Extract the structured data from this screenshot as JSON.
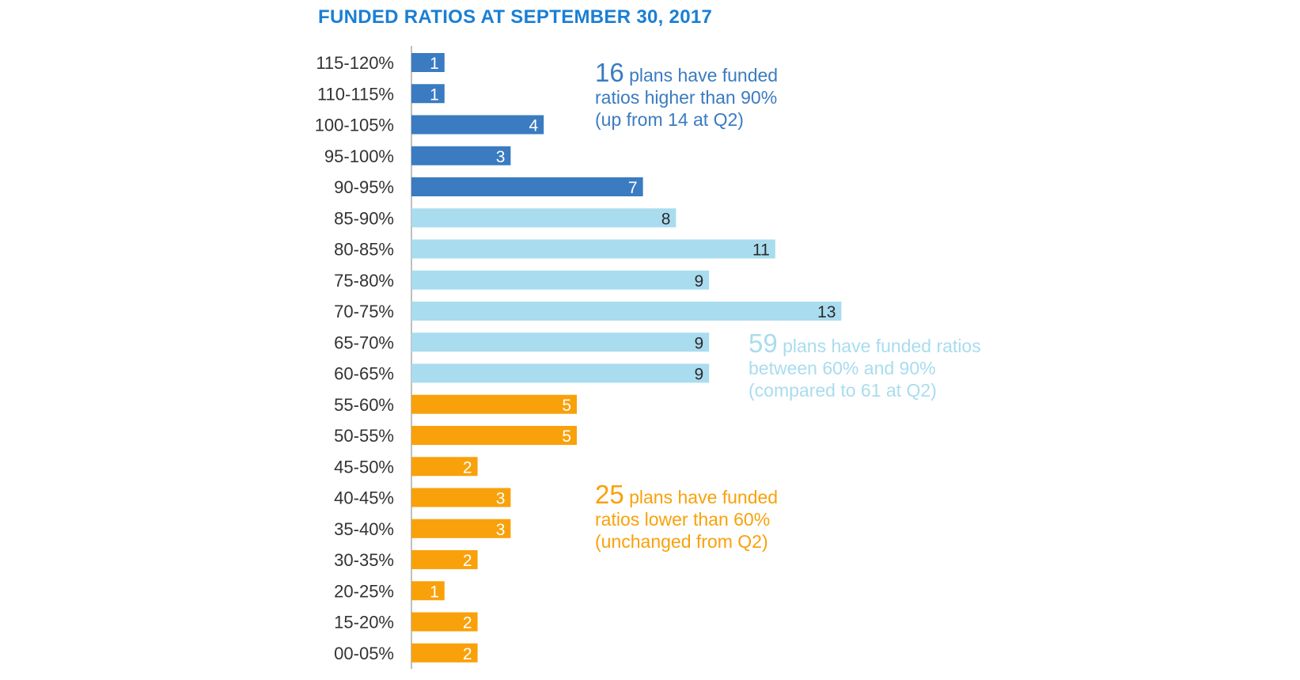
{
  "colors": {
    "high": "#3a7bc1",
    "mid": "#a9dcef",
    "low": "#f9a10a",
    "title": "#1a7fd4",
    "axis": "#bfbfbf",
    "category_text": "#333333",
    "label_on_dark": "#ffffff",
    "label_on_mid": "#2b2b2b"
  },
  "chart_data": {
    "type": "bar",
    "orientation": "horizontal",
    "title": "FUNDED RATIOS AT SEPTEMBER 30, 2017",
    "xlabel": "",
    "ylabel": "",
    "xlim": [
      0,
      13
    ],
    "grid": false,
    "legend": "none",
    "categories": [
      "115-120%",
      "110-115%",
      "100-105%",
      "95-100%",
      "90-95%",
      "85-90%",
      "80-85%",
      "75-80%",
      "70-75%",
      "65-70%",
      "60-65%",
      "55-60%",
      "50-55%",
      "45-50%",
      "40-45%",
      "35-40%",
      "30-35%",
      "20-25%",
      "15-20%",
      "00-05%"
    ],
    "values": [
      1,
      1,
      4,
      3,
      7,
      8,
      11,
      9,
      13,
      9,
      9,
      5,
      5,
      2,
      3,
      3,
      2,
      1,
      2,
      2
    ],
    "groups": [
      "high",
      "high",
      "high",
      "high",
      "high",
      "mid",
      "mid",
      "mid",
      "mid",
      "mid",
      "mid",
      "low",
      "low",
      "low",
      "low",
      "low",
      "low",
      "low",
      "low",
      "low"
    ]
  },
  "annotations": [
    {
      "group": "high",
      "number": "16",
      "text1": "plans have funded",
      "text2": "ratios higher than 90%",
      "text3": "(up from 14 at Q2)"
    },
    {
      "group": "mid",
      "number": "59",
      "text1": "plans have funded ratios",
      "text2": "between 60% and 90%",
      "text3": "(compared to 61 at Q2)"
    },
    {
      "group": "low",
      "number": "25",
      "text1": "plans have funded",
      "text2": "ratios lower than 60%",
      "text3": "(unchanged from Q2)"
    }
  ]
}
